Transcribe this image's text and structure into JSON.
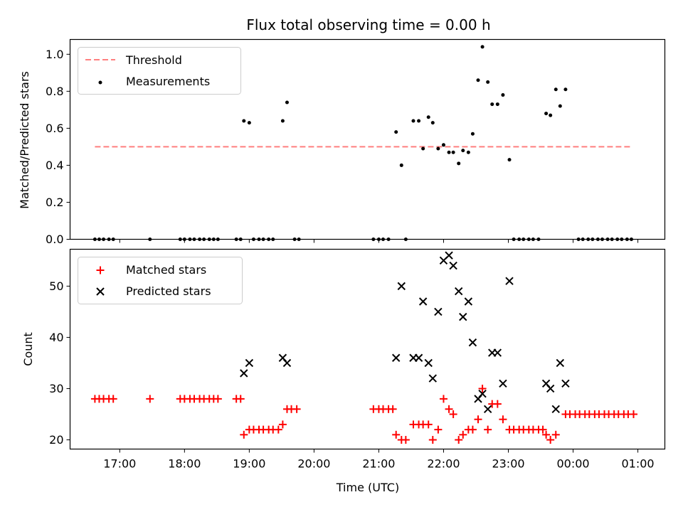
{
  "chart_data": [
    {
      "type": "scatter",
      "title": "Flux total observing time = 0.00 h",
      "xlabel": "",
      "ylabel": "Matched/Predicted stars",
      "ylim": [
        0,
        1.08
      ],
      "yticks": [
        "0.0",
        "0.2",
        "0.4",
        "0.6",
        "0.8",
        "1.0"
      ],
      "legend_position": "top-left",
      "threshold": {
        "name": "Threshold",
        "value": 0.5,
        "x_range": [
          "16:37",
          "00:53"
        ],
        "color": "#ff7f7f"
      },
      "series": [
        {
          "name": "Measurements",
          "color": "#000000",
          "points": [
            [
              "16:37",
              0
            ],
            [
              "16:41",
              0
            ],
            [
              "16:45",
              0
            ],
            [
              "16:50",
              0
            ],
            [
              "16:54",
              0
            ],
            [
              "17:28",
              0
            ],
            [
              "17:56",
              0
            ],
            [
              "18:00",
              0
            ],
            [
              "18:05",
              0
            ],
            [
              "18:09",
              0
            ],
            [
              "18:14",
              0
            ],
            [
              "18:18",
              0
            ],
            [
              "18:23",
              0
            ],
            [
              "18:27",
              0
            ],
            [
              "18:31",
              0
            ],
            [
              "18:48",
              0
            ],
            [
              "18:52",
              0
            ],
            [
              "18:55",
              0.64
            ],
            [
              "19:00",
              0.63
            ],
            [
              "19:04",
              0
            ],
            [
              "19:09",
              0
            ],
            [
              "19:13",
              0
            ],
            [
              "19:18",
              0
            ],
            [
              "19:22",
              0
            ],
            [
              "19:31",
              0.64
            ],
            [
              "19:35",
              0.74
            ],
            [
              "19:42",
              0
            ],
            [
              "19:46",
              0
            ],
            [
              "20:55",
              0
            ],
            [
              "21:00",
              0
            ],
            [
              "21:04",
              0
            ],
            [
              "21:09",
              0
            ],
            [
              "21:16",
              0.58
            ],
            [
              "21:21",
              0.4
            ],
            [
              "21:25",
              0
            ],
            [
              "21:32",
              0.64
            ],
            [
              "21:37",
              0.64
            ],
            [
              "21:41",
              0.49
            ],
            [
              "21:46",
              0.66
            ],
            [
              "21:50",
              0.63
            ],
            [
              "21:55",
              0.49
            ],
            [
              "22:00",
              0.51
            ],
            [
              "22:05",
              0.47
            ],
            [
              "22:09",
              0.47
            ],
            [
              "22:14",
              0.41
            ],
            [
              "22:18",
              0.48
            ],
            [
              "22:23",
              0.47
            ],
            [
              "22:27",
              0.57
            ],
            [
              "22:32",
              0.86
            ],
            [
              "22:36",
              1.04
            ],
            [
              "22:41",
              0.85
            ],
            [
              "22:45",
              0.73
            ],
            [
              "22:50",
              0.73
            ],
            [
              "22:55",
              0.78
            ],
            [
              "23:01",
              0.43
            ],
            [
              "23:05",
              0
            ],
            [
              "23:10",
              0
            ],
            [
              "23:14",
              0
            ],
            [
              "23:19",
              0
            ],
            [
              "23:23",
              0
            ],
            [
              "23:28",
              0
            ],
            [
              "23:35",
              0.68
            ],
            [
              "23:39",
              0.67
            ],
            [
              "23:44",
              0.81
            ],
            [
              "23:48",
              0.72
            ],
            [
              "23:53",
              0.81
            ],
            [
              "00:05",
              0
            ],
            [
              "00:09",
              0
            ],
            [
              "00:14",
              0
            ],
            [
              "00:18",
              0
            ],
            [
              "00:23",
              0
            ],
            [
              "00:27",
              0
            ],
            [
              "00:32",
              0
            ],
            [
              "00:36",
              0
            ],
            [
              "00:41",
              0
            ],
            [
              "00:45",
              0
            ],
            [
              "00:50",
              0
            ],
            [
              "00:54",
              0
            ]
          ]
        }
      ]
    },
    {
      "type": "scatter",
      "title": "",
      "xlabel": "Time (UTC)",
      "ylabel": "Count",
      "ylim": [
        18.2,
        57.2
      ],
      "yticks": [
        "20",
        "30",
        "40",
        "50"
      ],
      "xticks": [
        "17:00",
        "18:00",
        "19:00",
        "20:00",
        "21:00",
        "22:00",
        "23:00",
        "00:00",
        "01:00"
      ],
      "legend_position": "top-left",
      "series": [
        {
          "name": "Matched stars",
          "marker": "+",
          "color": "#ff0000",
          "points": [
            [
              "16:37",
              28
            ],
            [
              "16:41",
              28
            ],
            [
              "16:45",
              28
            ],
            [
              "16:50",
              28
            ],
            [
              "16:54",
              28
            ],
            [
              "17:28",
              28
            ],
            [
              "17:56",
              28
            ],
            [
              "18:00",
              28
            ],
            [
              "18:05",
              28
            ],
            [
              "18:09",
              28
            ],
            [
              "18:14",
              28
            ],
            [
              "18:18",
              28
            ],
            [
              "18:23",
              28
            ],
            [
              "18:27",
              28
            ],
            [
              "18:31",
              28
            ],
            [
              "18:48",
              28
            ],
            [
              "18:52",
              28
            ],
            [
              "18:55",
              21
            ],
            [
              "19:00",
              22
            ],
            [
              "19:04",
              22
            ],
            [
              "19:09",
              22
            ],
            [
              "19:13",
              22
            ],
            [
              "19:18",
              22
            ],
            [
              "19:22",
              22
            ],
            [
              "19:27",
              22
            ],
            [
              "19:31",
              23
            ],
            [
              "19:35",
              26
            ],
            [
              "19:39",
              26
            ],
            [
              "19:44",
              26
            ],
            [
              "20:55",
              26
            ],
            [
              "21:00",
              26
            ],
            [
              "21:04",
              26
            ],
            [
              "21:09",
              26
            ],
            [
              "21:13",
              26
            ],
            [
              "21:16",
              21
            ],
            [
              "21:21",
              20
            ],
            [
              "21:25",
              20
            ],
            [
              "21:32",
              23
            ],
            [
              "21:37",
              23
            ],
            [
              "21:41",
              23
            ],
            [
              "21:46",
              23
            ],
            [
              "21:50",
              20
            ],
            [
              "21:55",
              22
            ],
            [
              "22:00",
              28
            ],
            [
              "22:05",
              26
            ],
            [
              "22:09",
              25
            ],
            [
              "22:14",
              20
            ],
            [
              "22:18",
              21
            ],
            [
              "22:23",
              22
            ],
            [
              "22:27",
              22
            ],
            [
              "22:32",
              24
            ],
            [
              "22:36",
              30
            ],
            [
              "22:41",
              22
            ],
            [
              "22:45",
              27
            ],
            [
              "22:50",
              27
            ],
            [
              "22:55",
              24
            ],
            [
              "23:01",
              22
            ],
            [
              "23:05",
              22
            ],
            [
              "23:10",
              22
            ],
            [
              "23:14",
              22
            ],
            [
              "23:19",
              22
            ],
            [
              "23:23",
              22
            ],
            [
              "23:28",
              22
            ],
            [
              "23:32",
              22
            ],
            [
              "23:35",
              21
            ],
            [
              "23:39",
              20
            ],
            [
              "23:44",
              21
            ],
            [
              "23:53",
              25
            ],
            [
              "23:57",
              25
            ],
            [
              "00:02",
              25
            ],
            [
              "00:06",
              25
            ],
            [
              "00:11",
              25
            ],
            [
              "00:15",
              25
            ],
            [
              "00:20",
              25
            ],
            [
              "00:24",
              25
            ],
            [
              "00:29",
              25
            ],
            [
              "00:33",
              25
            ],
            [
              "00:38",
              25
            ],
            [
              "00:42",
              25
            ],
            [
              "00:47",
              25
            ],
            [
              "00:51",
              25
            ],
            [
              "00:56",
              25
            ]
          ]
        },
        {
          "name": "Predicted stars",
          "marker": "x",
          "color": "#000000",
          "points": [
            [
              "18:55",
              33
            ],
            [
              "19:00",
              35
            ],
            [
              "19:31",
              36
            ],
            [
              "19:35",
              35
            ],
            [
              "21:16",
              36
            ],
            [
              "21:21",
              50
            ],
            [
              "21:32",
              36
            ],
            [
              "21:37",
              36
            ],
            [
              "21:41",
              47
            ],
            [
              "21:46",
              35
            ],
            [
              "21:50",
              32
            ],
            [
              "21:55",
              45
            ],
            [
              "22:00",
              55
            ],
            [
              "22:05",
              56
            ],
            [
              "22:09",
              54
            ],
            [
              "22:14",
              49
            ],
            [
              "22:18",
              44
            ],
            [
              "22:23",
              47
            ],
            [
              "22:27",
              39
            ],
            [
              "22:32",
              28
            ],
            [
              "22:36",
              29
            ],
            [
              "22:41",
              26
            ],
            [
              "22:45",
              37
            ],
            [
              "22:50",
              37
            ],
            [
              "22:55",
              31
            ],
            [
              "23:01",
              51
            ],
            [
              "23:35",
              31
            ],
            [
              "23:39",
              30
            ],
            [
              "23:44",
              26
            ],
            [
              "23:48",
              35
            ],
            [
              "23:53",
              31
            ]
          ]
        }
      ]
    }
  ]
}
